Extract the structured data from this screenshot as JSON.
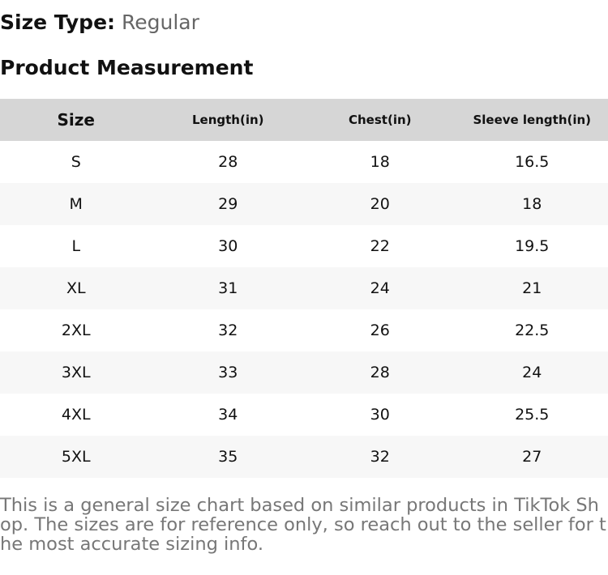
{
  "size_type": {
    "label": "Size Type:",
    "value": "Regular"
  },
  "section_title": "Product Measurement",
  "table": {
    "headers": [
      "Size",
      "Length(in)",
      "Chest(in)",
      "Sleeve length(in)"
    ],
    "rows": [
      [
        "S",
        28,
        18,
        16.5
      ],
      [
        "M",
        29,
        20,
        18
      ],
      [
        "L",
        30,
        22,
        19.5
      ],
      [
        "XL",
        31,
        24,
        21
      ],
      [
        "2XL",
        32,
        26,
        22.5
      ],
      [
        "3XL",
        33,
        28,
        24
      ],
      [
        "4XL",
        34,
        30,
        25.5
      ],
      [
        "5XL",
        35,
        32,
        27
      ]
    ]
  },
  "note": "This is a general size chart based on similar products in TikTok Shop. The sizes are for reference only, so reach out to the seller for the most accurate sizing info."
}
